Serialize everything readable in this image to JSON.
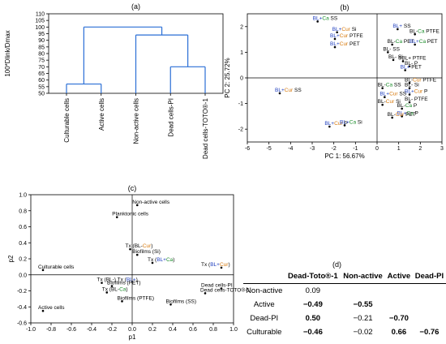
{
  "chart_data": [
    {
      "panel": "(a)",
      "type": "dendrogram",
      "ylabel": "100*Dlink/Dmax",
      "ylim": [
        50,
        110
      ],
      "yticks": [
        50,
        55,
        60,
        65,
        70,
        75,
        80,
        85,
        90,
        95,
        100,
        105,
        110
      ],
      "leaves": [
        "Culturable cells",
        "Active cells",
        "Non-active cells",
        "Dead cells-PI",
        "Dead cells-TOTO®-1"
      ],
      "merges": [
        {
          "left": 0,
          "right": 1,
          "height": 57
        },
        {
          "left": 3,
          "right": 4,
          "height": 70
        },
        {
          "left": 2,
          "right": "3-4",
          "height": 94
        },
        {
          "left": "0-1",
          "right": "2-3-4",
          "height": 100
        }
      ]
    },
    {
      "panel": "(b)",
      "type": "scatter",
      "xlabel": "PC 1: 56.67%",
      "ylabel": "PC 2: 25.72%",
      "xlim": [
        -6,
        3
      ],
      "ylim": [
        -2.5,
        2.5
      ],
      "xticks": [
        -6,
        -5,
        -4,
        -3,
        -2,
        -1,
        0,
        1,
        2,
        3
      ],
      "yticks": [
        -2,
        -1,
        0,
        1,
        2
      ],
      "points": [
        {
          "x": -2.75,
          "y": 2.2,
          "parts": [
            [
              "BL+",
              "#1f3fbf"
            ],
            [
              "Ca",
              "#1a8c2a"
            ],
            [
              " SS",
              "#000"
            ]
          ]
        },
        {
          "x": -1.85,
          "y": 1.78,
          "parts": [
            [
              "BL+",
              "#1f3fbf"
            ],
            [
              "Cur",
              "#d77a0e"
            ],
            [
              " Si",
              "#000"
            ]
          ]
        },
        {
          "x": -1.95,
          "y": 1.52,
          "parts": [
            [
              "BL+",
              "#1f3fbf"
            ],
            [
              "Cur",
              "#d77a0e"
            ],
            [
              " PTFE",
              "#000"
            ]
          ]
        },
        {
          "x": -1.95,
          "y": 1.2,
          "parts": [
            [
              "BL+",
              "#1f3fbf"
            ],
            [
              "Cur",
              "#d77a0e"
            ],
            [
              " PET",
              "#000"
            ]
          ]
        },
        {
          "x": 0.95,
          "y": 1.9,
          "parts": [
            [
              "BL+",
              "#1f3fbf"
            ],
            [
              " SS",
              "#000"
            ]
          ]
        },
        {
          "x": 1.75,
          "y": 1.7,
          "parts": [
            [
              "BL-",
              "#000"
            ],
            [
              "Ca",
              "#1a8c2a"
            ],
            [
              " PTFE",
              "#000"
            ]
          ]
        },
        {
          "x": 0.7,
          "y": 1.3,
          "parts": [
            [
              "BL-",
              "#000"
            ],
            [
              "Ca",
              "#1a8c2a"
            ],
            [
              " PET",
              "#000"
            ]
          ]
        },
        {
          "x": 1.75,
          "y": 1.3,
          "parts": [
            [
              "BL+",
              "#1f3fbf"
            ],
            [
              "Ca",
              "#1a8c2a"
            ],
            [
              " PET",
              "#000"
            ]
          ]
        },
        {
          "x": 0.5,
          "y": 1.0,
          "parts": [
            [
              "BL-",
              "#000"
            ],
            [
              " SS",
              "#000"
            ]
          ]
        },
        {
          "x": 0.75,
          "y": 0.7,
          "parts": [
            [
              "BL-",
              "#000"
            ],
            [
              " Si",
              "#000"
            ]
          ]
        },
        {
          "x": 1.2,
          "y": 0.65,
          "parts": [
            [
              "SBL+",
              "#000"
            ],
            [
              " PTFE",
              "#000"
            ]
          ]
        },
        {
          "x": 1.5,
          "y": 0.45,
          "parts": [
            [
              "BL-",
              "#000"
            ],
            [
              " P",
              "#000"
            ]
          ]
        },
        {
          "x": 1.3,
          "y": 0.3,
          "parts": [
            [
              "BL+",
              "#1f3fbf"
            ],
            [
              " PET",
              "#000"
            ]
          ]
        },
        {
          "x": 0.25,
          "y": -0.4,
          "parts": [
            [
              "BL-",
              "#000"
            ],
            [
              "Ca",
              "#1a8c2a"
            ],
            [
              " SS",
              "#000"
            ]
          ]
        },
        {
          "x": 1.5,
          "y": -0.2,
          "parts": [
            [
              "BL-",
              "#000"
            ],
            [
              "Cur",
              "#d77a0e"
            ],
            [
              " PTFE",
              "#000"
            ]
          ]
        },
        {
          "x": 1.5,
          "y": -0.4,
          "parts": [
            [
              "BL-",
              "#000"
            ],
            [
              " Si",
              "#000"
            ]
          ]
        },
        {
          "x": 1.5,
          "y": -0.65,
          "parts": [
            [
              "BL+",
              "#1f3fbf"
            ],
            [
              "Cur",
              "#d77a0e"
            ],
            [
              " P",
              "#000"
            ]
          ]
        },
        {
          "x": 1.5,
          "y": -0.95,
          "parts": [
            [
              "BL-",
              "#000"
            ],
            [
              " PTFE",
              "#000"
            ]
          ]
        },
        {
          "x": 0.35,
          "y": -0.75,
          "parts": [
            [
              "BL+",
              "#1f3fbf"
            ],
            [
              "Cur",
              "#d77a0e"
            ],
            [
              " SS",
              "#000"
            ]
          ]
        },
        {
          "x": 0.25,
          "y": -1.05,
          "parts": [
            [
              "BL-",
              "#000"
            ],
            [
              "Cur",
              "#d77a0e"
            ],
            [
              " Si",
              "#000"
            ]
          ]
        },
        {
          "x": 1.15,
          "y": -1.2,
          "parts": [
            [
              "BL-",
              "#000"
            ],
            [
              "Ca",
              "#1a8c2a"
            ],
            [
              " P",
              "#000"
            ]
          ]
        },
        {
          "x": 1.15,
          "y": -1.5,
          "parts": [
            [
              "BL+",
              "#1f3fbf"
            ],
            [
              "Ca",
              "#1a8c2a"
            ],
            [
              " P",
              "#000"
            ]
          ]
        },
        {
          "x": 0.7,
          "y": -1.55,
          "parts": [
            [
              "BL-",
              "#000"
            ],
            [
              "Cur",
              "#d77a0e"
            ],
            [
              " PET",
              "#000"
            ]
          ]
        },
        {
          "x": -4.5,
          "y": -0.6,
          "parts": [
            [
              "BL+",
              "#1f3fbf"
            ],
            [
              "Cur",
              "#d77a0e"
            ],
            [
              " SS",
              "#000"
            ]
          ]
        },
        {
          "x": -2.2,
          "y": -1.9,
          "parts": [
            [
              "BL+",
              "#1f3fbf"
            ],
            [
              "Cur",
              "#d77a0e"
            ],
            [
              " P",
              "#000"
            ]
          ]
        },
        {
          "x": -1.5,
          "y": -1.85,
          "parts": [
            [
              "BL+",
              "#1f3fbf"
            ],
            [
              "Ca",
              "#1a8c2a"
            ],
            [
              " Si",
              "#000"
            ]
          ]
        }
      ]
    },
    {
      "panel": "(c)",
      "type": "scatter",
      "xlabel": "p1",
      "ylabel": "p2",
      "xlim": [
        -1.0,
        1.0
      ],
      "ylim": [
        -0.6,
        1.0
      ],
      "xticks": [
        -1.0,
        -0.8,
        -0.6,
        -0.4,
        -0.2,
        0.0,
        0.2,
        0.4,
        0.6,
        0.8,
        1.0
      ],
      "yticks": [
        -0.6,
        -0.4,
        -0.2,
        0.0,
        0.2,
        0.4,
        0.6,
        0.8,
        1.0
      ],
      "points": [
        {
          "x": 0.05,
          "y": 0.87,
          "parts": [
            [
              "Non-active cells",
              "#000"
            ]
          ]
        },
        {
          "x": -0.15,
          "y": 0.72,
          "parts": [
            [
              "Planktonic cells",
              "#000"
            ]
          ]
        },
        {
          "x": -0.02,
          "y": 0.32,
          "parts": [
            [
              "Tx (BL-",
              "#000"
            ],
            [
              "Cur",
              "#d77a0e"
            ],
            [
              ")",
              "#000"
            ]
          ]
        },
        {
          "x": 0.05,
          "y": 0.25,
          "parts": [
            [
              "Biofilms (Si)",
              "#000"
            ]
          ]
        },
        {
          "x": 0.2,
          "y": 0.15,
          "parts": [
            [
              "Tx (",
              "#000"
            ],
            [
              "BL+",
              "#1f3fbf"
            ],
            [
              "Ca",
              "#1a8c2a"
            ],
            [
              ")",
              "#000"
            ]
          ]
        },
        {
          "x": 0.88,
          "y": 0.09,
          "parts": [
            [
              "Tx (",
              "#000"
            ],
            [
              "BL+",
              "#1f3fbf"
            ],
            [
              "Cur",
              "#d77a0e"
            ],
            [
              ")",
              "#000"
            ]
          ]
        },
        {
          "x": -0.88,
          "y": 0.06,
          "parts": [
            [
              "Culturable cells",
              "#000"
            ]
          ]
        },
        {
          "x": -0.3,
          "y": -0.1,
          "parts": [
            [
              "Tx (BL-) Tx (",
              "#000"
            ],
            [
              "BL+",
              "#1f3fbf"
            ],
            [
              ")",
              "#000"
            ]
          ]
        },
        {
          "x": -0.2,
          "y": -0.14,
          "parts": [
            [
              "Biofilms (PET)",
              "#000"
            ]
          ]
        },
        {
          "x": -0.25,
          "y": -0.22,
          "parts": [
            [
              "Tx (BL-",
              "#000"
            ],
            [
              "Ca",
              "#1a8c2a"
            ],
            [
              ")",
              "#000"
            ]
          ]
        },
        {
          "x": -0.1,
          "y": -0.33,
          "parts": [
            [
              "Biofilms (PTFE)",
              "#000"
            ]
          ]
        },
        {
          "x": 0.88,
          "y": -0.17,
          "parts": [
            [
              "Dead cells-PI",
              "#000"
            ]
          ]
        },
        {
          "x": 0.72,
          "y": -0.23,
          "parts": [
            [
              "Dead cells-TOTO",
              "#000"
            ],
            [
              "®",
              "#000"
            ],
            [
              "-1",
              "#000"
            ]
          ]
        },
        {
          "x": 0.38,
          "y": -0.37,
          "parts": [
            [
              "Biofilms (SS)",
              "#000"
            ]
          ]
        },
        {
          "x": -0.88,
          "y": -0.45,
          "parts": [
            [
              "Active cells",
              "#000"
            ]
          ]
        }
      ]
    }
  ],
  "table": {
    "panel": "(d)",
    "columns": [
      "",
      "Dead-Toto®-1",
      "Non-active",
      "Active",
      "Dead-PI"
    ],
    "rows": [
      {
        "label": "Non-active",
        "cells": [
          {
            "v": "0.09",
            "b": false
          },
          {
            "v": "",
            "b": false
          },
          {
            "v": "",
            "b": false
          },
          {
            "v": "",
            "b": false
          }
        ]
      },
      {
        "label": "Active",
        "cells": [
          {
            "v": "−0.49",
            "b": true
          },
          {
            "v": "−0.55",
            "b": true
          },
          {
            "v": "",
            "b": false
          },
          {
            "v": "",
            "b": false
          }
        ]
      },
      {
        "label": "Dead-PI",
        "cells": [
          {
            "v": "0.50",
            "b": true
          },
          {
            "v": "−0.21",
            "b": false
          },
          {
            "v": "−0.70",
            "b": true
          },
          {
            "v": "",
            "b": false
          }
        ]
      },
      {
        "label": "Culturable",
        "cells": [
          {
            "v": "−0.46",
            "b": true
          },
          {
            "v": "−0.02",
            "b": false
          },
          {
            "v": "0.66",
            "b": true
          },
          {
            "v": "−0.76",
            "b": true
          }
        ]
      }
    ]
  }
}
